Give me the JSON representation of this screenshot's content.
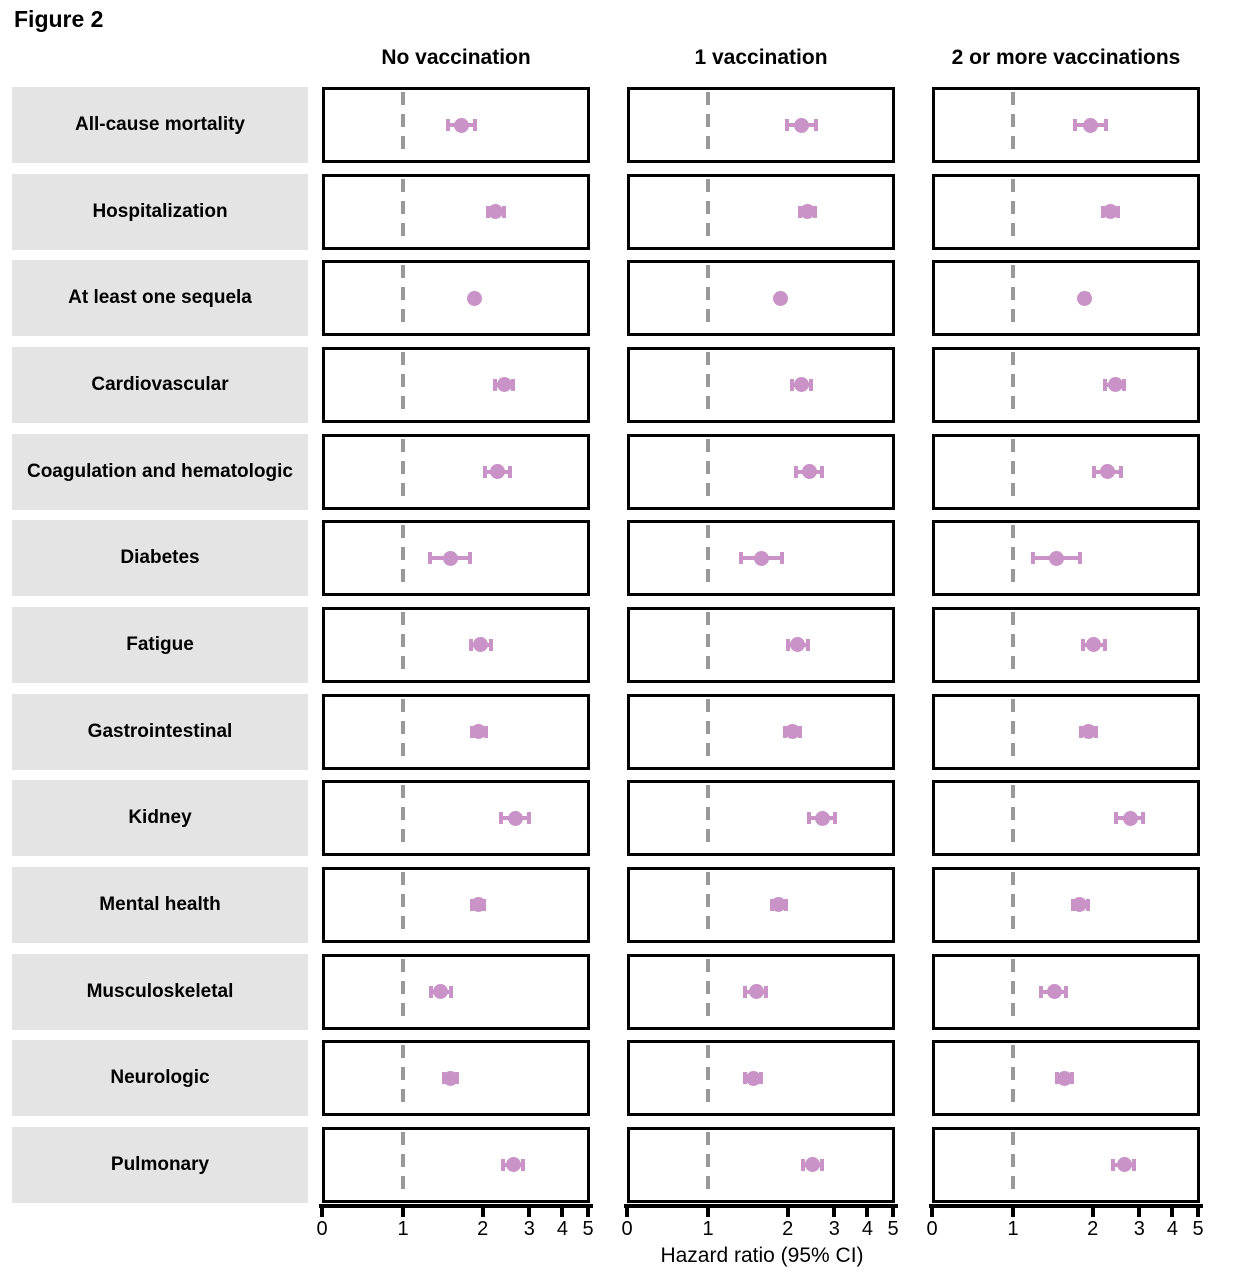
{
  "figure": {
    "title": "Figure 2",
    "xlabel": "Hazard ratio (95% CI)"
  },
  "chart_data": {
    "type": "forest",
    "title": "Figure 2",
    "xlabel": "Hazard ratio (95% CI)",
    "x_ticks": [
      0,
      1,
      2,
      3,
      4,
      5
    ],
    "x_scale": "log (equal spacing per doubling); the 0 tick sits at the panel left edge",
    "reference_line": 1,
    "legend_position": "none",
    "grid": false,
    "outcomes": [
      "All-cause mortality",
      "Hospitalization",
      "At least one sequela",
      "Cardiovascular",
      "Coagulation and hematologic",
      "Diabetes",
      "Fatigue",
      "Gastrointestinal",
      "Kidney",
      "Mental health",
      "Musculoskeletal",
      "Neurologic",
      "Pulmonary"
    ],
    "series": [
      {
        "name": "No vaccination",
        "points": [
          {
            "hr": 1.67,
            "lo": 1.47,
            "hi": 1.89
          },
          {
            "hr": 2.24,
            "lo": 2.07,
            "hi": 2.42
          },
          {
            "hr": 1.87,
            "lo": 1.82,
            "hi": 1.92
          },
          {
            "hr": 2.41,
            "lo": 2.21,
            "hi": 2.62
          },
          {
            "hr": 2.27,
            "lo": 2.02,
            "hi": 2.56
          },
          {
            "hr": 1.51,
            "lo": 1.25,
            "hi": 1.81
          },
          {
            "hr": 1.97,
            "lo": 1.79,
            "hi": 2.16
          },
          {
            "hr": 1.93,
            "lo": 1.81,
            "hi": 2.07
          },
          {
            "hr": 2.65,
            "lo": 2.33,
            "hi": 3.03
          },
          {
            "hr": 1.92,
            "lo": 1.81,
            "hi": 2.04
          },
          {
            "hr": 1.38,
            "lo": 1.26,
            "hi": 1.53
          },
          {
            "hr": 1.51,
            "lo": 1.41,
            "hi": 1.62
          },
          {
            "hr": 2.61,
            "lo": 2.37,
            "hi": 2.86
          }
        ]
      },
      {
        "name": "1 vaccination",
        "points": [
          {
            "hr": 2.26,
            "lo": 1.97,
            "hi": 2.59
          },
          {
            "hr": 2.37,
            "lo": 2.2,
            "hi": 2.56
          },
          {
            "hr": 1.88,
            "lo": 1.82,
            "hi": 1.94
          },
          {
            "hr": 2.26,
            "lo": 2.05,
            "hi": 2.47
          },
          {
            "hr": 2.42,
            "lo": 2.14,
            "hi": 2.71
          },
          {
            "hr": 1.59,
            "lo": 1.32,
            "hi": 1.92
          },
          {
            "hr": 2.18,
            "lo": 1.98,
            "hi": 2.4
          },
          {
            "hr": 2.09,
            "lo": 1.94,
            "hi": 2.25
          },
          {
            "hr": 2.7,
            "lo": 2.39,
            "hi": 3.04
          },
          {
            "hr": 1.85,
            "lo": 1.73,
            "hi": 1.98
          },
          {
            "hr": 1.52,
            "lo": 1.37,
            "hi": 1.67
          },
          {
            "hr": 1.48,
            "lo": 1.37,
            "hi": 1.6
          },
          {
            "hr": 2.48,
            "lo": 2.26,
            "hi": 2.71
          }
        ]
      },
      {
        "name": "2 or more vaccinations",
        "points": [
          {
            "hr": 1.97,
            "lo": 1.7,
            "hi": 2.27
          },
          {
            "hr": 2.33,
            "lo": 2.16,
            "hi": 2.52
          },
          {
            "hr": 1.87,
            "lo": 1.81,
            "hi": 1.93
          },
          {
            "hr": 2.44,
            "lo": 2.21,
            "hi": 2.66
          },
          {
            "hr": 2.27,
            "lo": 2.0,
            "hi": 2.58
          },
          {
            "hr": 1.46,
            "lo": 1.18,
            "hi": 1.8
          },
          {
            "hr": 2.02,
            "lo": 1.82,
            "hi": 2.24
          },
          {
            "hr": 1.92,
            "lo": 1.79,
            "hi": 2.07
          },
          {
            "hr": 2.77,
            "lo": 2.42,
            "hi": 3.12
          },
          {
            "hr": 1.79,
            "lo": 1.67,
            "hi": 1.93
          },
          {
            "hr": 1.43,
            "lo": 1.27,
            "hi": 1.6
          },
          {
            "hr": 1.56,
            "lo": 1.45,
            "hi": 1.68
          },
          {
            "hr": 2.63,
            "lo": 2.37,
            "hi": 2.88
          }
        ]
      }
    ]
  },
  "style": {
    "marker_color": "#c993c8",
    "label_box_color": "#e4e4e4",
    "ref_line_color": "#999999",
    "panel_border_color": "#000000",
    "axis_color": "#000000"
  }
}
